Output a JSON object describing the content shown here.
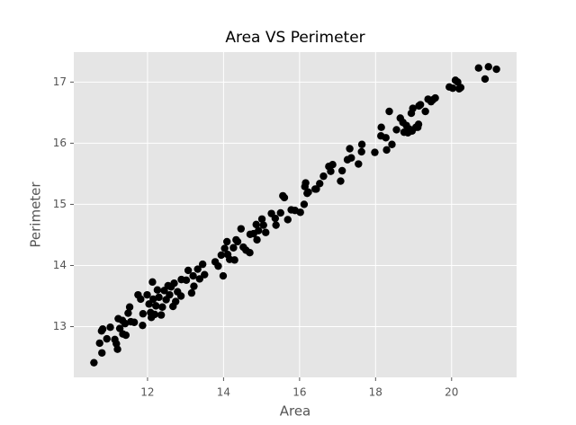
{
  "chart_data": {
    "type": "scatter",
    "title": "Area VS Perimeter",
    "x_label": "Area",
    "y_label": "Perimeter",
    "color": "#000000",
    "grid": true,
    "xlim": [
      10.06,
      21.71
    ],
    "ylim": [
      12.17,
      17.49
    ],
    "xticks": [
      12,
      14,
      16,
      18,
      20
    ],
    "yticks": [
      13,
      14,
      15,
      16,
      17
    ],
    "x": [
      10.59,
      10.74,
      10.8,
      10.82,
      10.79,
      10.93,
      11.02,
      11.14,
      11.18,
      11.21,
      11.23,
      11.27,
      11.34,
      11.35,
      11.41,
      11.43,
      11.49,
      11.53,
      11.56,
      11.65,
      11.75,
      11.82,
      11.87,
      11.88,
      11.99,
      12.04,
      12.08,
      12.1,
      12.13,
      12.15,
      12.19,
      12.22,
      12.26,
      12.3,
      12.36,
      12.39,
      12.44,
      12.49,
      12.54,
      12.58,
      12.62,
      12.67,
      12.7,
      12.74,
      12.79,
      12.88,
      12.89,
      13.02,
      13.07,
      13.16,
      13.2,
      13.22,
      13.32,
      13.37,
      13.45,
      13.5,
      13.78,
      13.86,
      13.94,
      13.99,
      14.03,
      14.09,
      14.11,
      14.16,
      14.26,
      14.29,
      14.33,
      14.37,
      14.46,
      14.52,
      14.59,
      14.69,
      14.7,
      14.79,
      14.86,
      14.88,
      14.92,
      15.01,
      15.05,
      15.11,
      15.26,
      15.36,
      15.38,
      15.5,
      15.56,
      15.6,
      15.69,
      15.78,
      15.88,
      16.02,
      16.12,
      16.14,
      16.16,
      16.2,
      16.23,
      16.41,
      16.44,
      16.53,
      16.63,
      16.77,
      16.82,
      16.87,
      17.08,
      17.12,
      17.26,
      17.32,
      17.36,
      17.55,
      17.63,
      17.64,
      17.98,
      18.14,
      18.15,
      18.27,
      18.29,
      18.36,
      18.43,
      18.55,
      18.65,
      18.72,
      18.75,
      18.81,
      18.85,
      18.89,
      18.94,
      18.96,
      18.98,
      19.06,
      19.11,
      19.13,
      19.14,
      19.18,
      19.31,
      19.38,
      19.46,
      19.51,
      19.57,
      19.94,
      20.03,
      20.1,
      20.16,
      20.2,
      20.24,
      20.71,
      20.88,
      20.97,
      21.18
    ],
    "values": [
      12.41,
      12.73,
      12.57,
      12.96,
      12.93,
      12.8,
      12.99,
      12.79,
      12.72,
      12.63,
      13.13,
      12.97,
      13.1,
      12.88,
      13.05,
      12.86,
      13.22,
      13.32,
      13.08,
      13.07,
      13.52,
      13.45,
      13.02,
      13.21,
      13.52,
      13.37,
      13.23,
      13.15,
      13.73,
      13.45,
      13.2,
      13.34,
      13.6,
      13.48,
      13.19,
      13.32,
      13.59,
      13.44,
      13.67,
      13.52,
      13.65,
      13.33,
      13.71,
      13.41,
      13.57,
      13.5,
      13.77,
      13.76,
      13.92,
      13.55,
      13.83,
      13.66,
      13.94,
      13.78,
      14.02,
      13.85,
      14.06,
      13.99,
      14.17,
      13.83,
      14.28,
      14.39,
      14.18,
      14.1,
      14.29,
      14.09,
      14.42,
      14.39,
      14.6,
      14.3,
      14.25,
      14.21,
      14.51,
      14.52,
      14.67,
      14.42,
      14.57,
      14.76,
      14.66,
      14.54,
      14.85,
      14.77,
      14.66,
      14.86,
      15.14,
      15.11,
      14.75,
      14.91,
      14.9,
      14.87,
      15.0,
      15.29,
      15.35,
      15.18,
      15.2,
      15.25,
      15.25,
      15.34,
      15.46,
      15.62,
      15.54,
      15.65,
      15.38,
      15.55,
      15.73,
      15.91,
      15.76,
      15.66,
      15.86,
      15.98,
      15.85,
      16.12,
      16.26,
      16.09,
      15.89,
      16.52,
      15.98,
      16.22,
      16.41,
      16.34,
      16.18,
      16.29,
      16.17,
      16.23,
      16.49,
      16.2,
      16.57,
      16.26,
      16.26,
      16.31,
      16.61,
      16.63,
      16.52,
      16.72,
      16.68,
      16.71,
      16.74,
      16.92,
      16.9,
      17.03,
      17.0,
      16.89,
      16.91,
      17.23,
      17.05,
      17.25,
      17.21
    ]
  }
}
